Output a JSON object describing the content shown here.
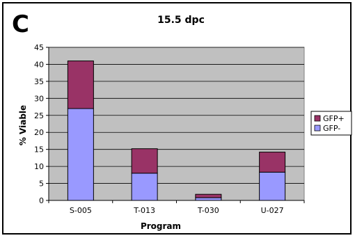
{
  "panel_label": "C",
  "chart_data": {
    "type": "bar",
    "stacked": true,
    "title": "15.5 dpc",
    "xlabel": "Program",
    "ylabel": "% Viable",
    "ylim": [
      0,
      45
    ],
    "yticks": [
      0,
      5,
      10,
      15,
      20,
      25,
      30,
      35,
      40,
      45
    ],
    "grid": true,
    "legend_placement": "right",
    "categories": [
      "S-005",
      "T-013",
      "T-030",
      "U-027"
    ],
    "series": [
      {
        "name": "GFP-",
        "color": "#9999ff",
        "values": [
          27,
          8,
          0.8,
          8.3
        ]
      },
      {
        "name": "GFP+",
        "color": "#993366",
        "values": [
          14,
          7.2,
          1.0,
          5.9
        ]
      }
    ],
    "plot_bg": "#c0c0c0"
  }
}
